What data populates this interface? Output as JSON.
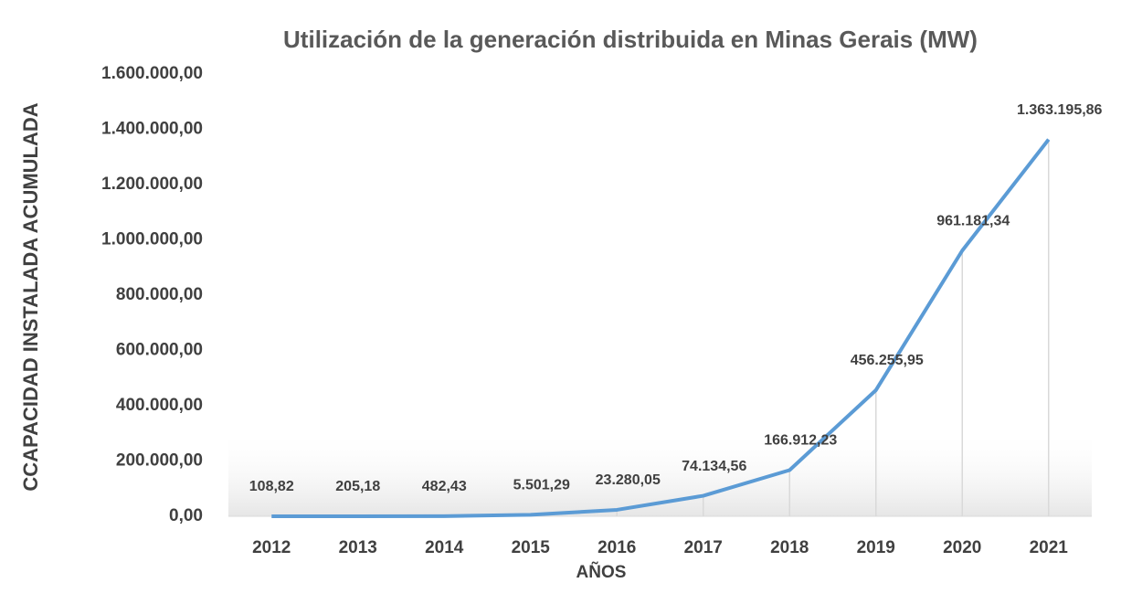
{
  "chart_data": {
    "type": "line",
    "title": "Utilización de la generación distribuida en Minas Gerais (MW)",
    "xlabel": "AÑOS",
    "ylabel": "CCAPACIDAD INSTALADA ACUMULADA",
    "categories": [
      "2012",
      "2013",
      "2014",
      "2015",
      "2016",
      "2017",
      "2018",
      "2019",
      "2020",
      "2021"
    ],
    "series": [
      {
        "name": "Capacidad instalada acumulada",
        "color": "#5b9bd5",
        "values": [
          108.82,
          205.18,
          482.43,
          5501.29,
          23280.05,
          74134.56,
          166912.23,
          456255.95,
          961181.34,
          1363195.86
        ],
        "value_labels": [
          "108,82",
          "205,18",
          "482,43",
          "5.501,29",
          "23.280,05",
          "74.134,56",
          "166.912,23",
          "456.255,95",
          "961.181,34",
          "1.363.195,86"
        ]
      }
    ],
    "ylim": [
      0,
      1600000
    ],
    "yticks": [
      {
        "value": 0,
        "label": "0,00"
      },
      {
        "value": 200000,
        "label": "200.000,00"
      },
      {
        "value": 400000,
        "label": "400.000,00"
      },
      {
        "value": 600000,
        "label": "600.000,00"
      },
      {
        "value": 800000,
        "label": "800.000,00"
      },
      {
        "value": 1000000,
        "label": "1.000.000,00"
      },
      {
        "value": 1200000,
        "label": "1.200.000,00"
      },
      {
        "value": 1400000,
        "label": "1.400.000,00"
      },
      {
        "value": 1600000,
        "label": "1.600.000,00"
      }
    ],
    "drop_lines": true
  }
}
